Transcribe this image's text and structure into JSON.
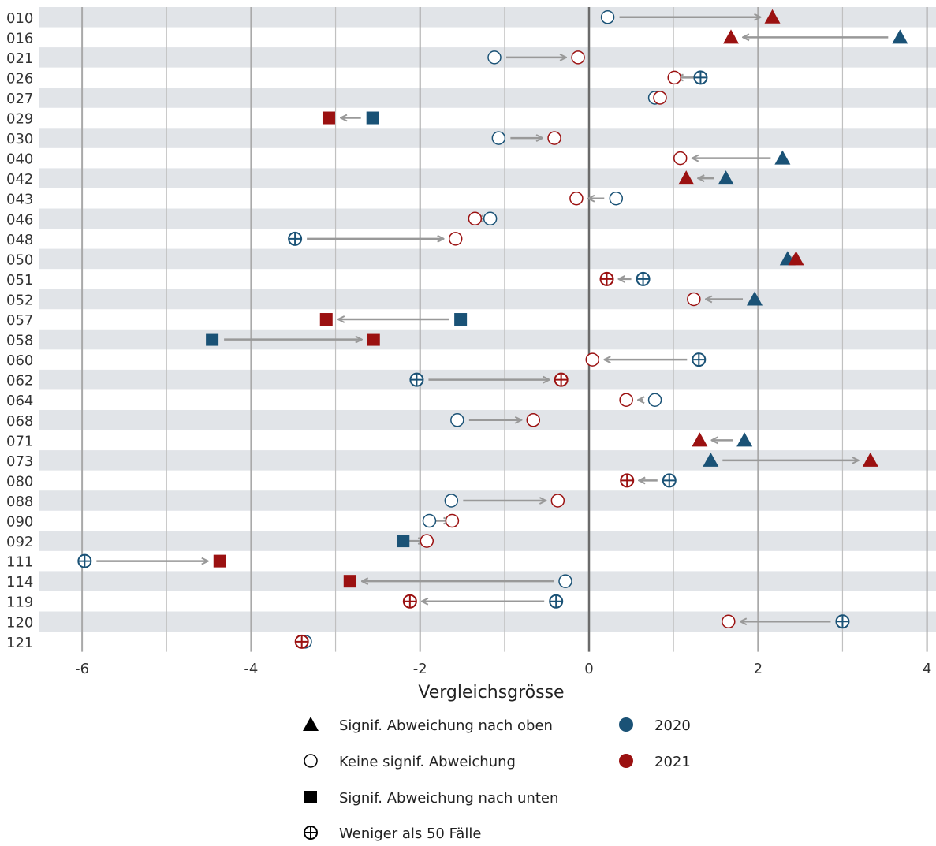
{
  "chart_data": {
    "type": "scatter",
    "xlabel": "Vergleichsgrösse",
    "xlim": [
      -6.5,
      4.15
    ],
    "x_ticks": [
      -6,
      -4,
      -2,
      0,
      2,
      4
    ],
    "x_tick_labels": [
      "-6",
      "-4",
      "-2",
      "0",
      "2",
      "4"
    ],
    "grid": true,
    "colors": {
      "2020": "#1a5276",
      "2021": "#9b1111",
      "arrow": "#999999",
      "band": "#e1e4e8"
    },
    "symbol_legend": [
      {
        "symbol": "triangle",
        "label": "Signif. Abweichung nach oben"
      },
      {
        "symbol": "circle",
        "label": "Keine signif. Abweichung"
      },
      {
        "symbol": "square",
        "label": "Signif. Abweichung nach unten"
      },
      {
        "symbol": "crosscircle",
        "label": "Weniger als 50 Fälle"
      }
    ],
    "year_legend": [
      {
        "year": "2020",
        "label": "2020"
      },
      {
        "year": "2021",
        "label": "2021"
      }
    ],
    "rows": [
      {
        "label": "010",
        "x2020": 0.22,
        "s2020": "circle",
        "x2021": 2.17,
        "s2021": "triangle"
      },
      {
        "label": "016",
        "x2020": 3.68,
        "s2020": "triangle",
        "x2021": 1.68,
        "s2021": "triangle"
      },
      {
        "label": "021",
        "x2020": -1.12,
        "s2020": "circle",
        "x2021": -0.13,
        "s2021": "circle"
      },
      {
        "label": "026",
        "x2020": 1.32,
        "s2020": "crosscircle",
        "x2021": 1.01,
        "s2021": "circle"
      },
      {
        "label": "027",
        "x2020": 0.78,
        "s2020": "circle",
        "x2021": 0.84,
        "s2021": "circle"
      },
      {
        "label": "029",
        "x2020": -2.56,
        "s2020": "square",
        "x2021": -3.08,
        "s2021": "square"
      },
      {
        "label": "030",
        "x2020": -1.07,
        "s2020": "circle",
        "x2021": -0.41,
        "s2021": "circle"
      },
      {
        "label": "040",
        "x2020": 2.29,
        "s2020": "triangle",
        "x2021": 1.08,
        "s2021": "circle"
      },
      {
        "label": "042",
        "x2020": 1.62,
        "s2020": "triangle",
        "x2021": 1.15,
        "s2021": "triangle"
      },
      {
        "label": "043",
        "x2020": 0.32,
        "s2020": "circle",
        "x2021": -0.15,
        "s2021": "circle"
      },
      {
        "label": "046",
        "x2020": -1.17,
        "s2020": "circle",
        "x2021": -1.35,
        "s2021": "circle"
      },
      {
        "label": "048",
        "x2020": -3.48,
        "s2020": "crosscircle",
        "x2021": -1.58,
        "s2021": "circle"
      },
      {
        "label": "050",
        "x2020": 2.35,
        "s2020": "triangle",
        "x2021": 2.45,
        "s2021": "triangle"
      },
      {
        "label": "051",
        "x2020": 0.64,
        "s2020": "crosscircle",
        "x2021": 0.21,
        "s2021": "crosscircle"
      },
      {
        "label": "052",
        "x2020": 1.96,
        "s2020": "triangle",
        "x2021": 1.24,
        "s2021": "circle"
      },
      {
        "label": "057",
        "x2020": -1.52,
        "s2020": "square",
        "x2021": -3.11,
        "s2021": "square"
      },
      {
        "label": "058",
        "x2020": -4.46,
        "s2020": "square",
        "x2021": -2.55,
        "s2021": "square"
      },
      {
        "label": "060",
        "x2020": 1.3,
        "s2020": "crosscircle",
        "x2021": 0.04,
        "s2021": "circle"
      },
      {
        "label": "062",
        "x2020": -2.04,
        "s2020": "crosscircle",
        "x2021": -0.33,
        "s2021": "crosscircle"
      },
      {
        "label": "064",
        "x2020": 0.78,
        "s2020": "circle",
        "x2021": 0.44,
        "s2021": "circle"
      },
      {
        "label": "068",
        "x2020": -1.56,
        "s2020": "circle",
        "x2021": -0.66,
        "s2021": "circle"
      },
      {
        "label": "071",
        "x2020": 1.84,
        "s2020": "triangle",
        "x2021": 1.31,
        "s2021": "triangle"
      },
      {
        "label": "073",
        "x2020": 1.44,
        "s2020": "triangle",
        "x2021": 3.33,
        "s2021": "triangle"
      },
      {
        "label": "080",
        "x2020": 0.95,
        "s2020": "crosscircle",
        "x2021": 0.45,
        "s2021": "crosscircle"
      },
      {
        "label": "088",
        "x2020": -1.63,
        "s2020": "circle",
        "x2021": -0.37,
        "s2021": "circle"
      },
      {
        "label": "090",
        "x2020": -1.89,
        "s2020": "circle",
        "x2021": -1.62,
        "s2021": "circle"
      },
      {
        "label": "092",
        "x2020": -2.2,
        "s2020": "square",
        "x2021": -1.92,
        "s2021": "circle"
      },
      {
        "label": "111",
        "x2020": -5.97,
        "s2020": "crosscircle",
        "x2021": -4.37,
        "s2021": "square"
      },
      {
        "label": "114",
        "x2020": -0.28,
        "s2020": "circle",
        "x2021": -2.83,
        "s2021": "square"
      },
      {
        "label": "119",
        "x2020": -0.39,
        "s2020": "crosscircle",
        "x2021": -2.12,
        "s2021": "crosscircle"
      },
      {
        "label": "120",
        "x2020": 3.0,
        "s2020": "crosscircle",
        "x2021": 1.65,
        "s2021": "circle"
      },
      {
        "label": "121",
        "x2020": -3.36,
        "s2020": "circle",
        "x2021": -3.4,
        "s2021": "crosscircle"
      }
    ]
  }
}
